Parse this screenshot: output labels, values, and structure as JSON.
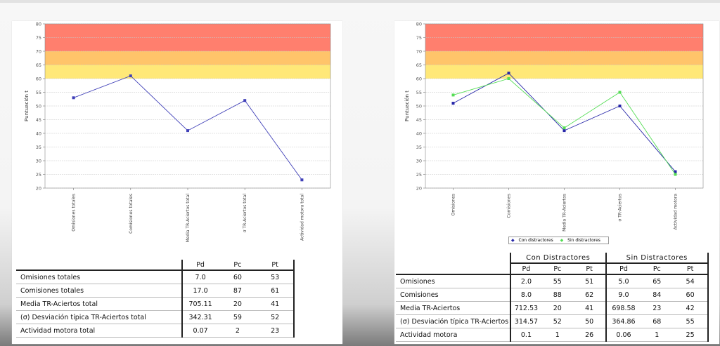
{
  "chart_data": [
    {
      "type": "line",
      "ylabel": "Puntuación t",
      "ylim": [
        20,
        80
      ],
      "yticks": [
        20,
        25,
        30,
        35,
        40,
        45,
        50,
        55,
        60,
        65,
        70,
        75,
        80
      ],
      "bands": [
        {
          "from": 60,
          "to": 65,
          "color": "#ffe878"
        },
        {
          "from": 65,
          "to": 70,
          "color": "#ffc46a"
        },
        {
          "from": 70,
          "to": 80,
          "color": "#ff7f6e"
        }
      ],
      "categories": [
        "Omisiones totales",
        "Comisiones totales",
        "Media TR-Aciertos total",
        "σ TR-Aciertos total",
        "Actividad motora total"
      ],
      "series": [
        {
          "color": "#4040b8",
          "values": [
            53,
            61,
            41,
            52,
            23
          ]
        }
      ]
    },
    {
      "type": "line",
      "ylabel": "Puntuación t",
      "ylim": [
        20,
        80
      ],
      "yticks": [
        20,
        25,
        30,
        35,
        40,
        45,
        50,
        55,
        60,
        65,
        70,
        75,
        80
      ],
      "bands": [
        {
          "from": 60,
          "to": 65,
          "color": "#ffe878"
        },
        {
          "from": 65,
          "to": 70,
          "color": "#ffc46a"
        },
        {
          "from": 70,
          "to": 80,
          "color": "#ff7f6e"
        }
      ],
      "categories": [
        "Omisiones",
        "Comisiones",
        "Media TR-Aciertos",
        "σ TR-Aciertos",
        "Actividad motora"
      ],
      "legend_position": "bottom-center",
      "series": [
        {
          "name": "Con distractores",
          "color": "#2626a8",
          "values": [
            51,
            62,
            41,
            50,
            26
          ]
        },
        {
          "name": "Sin distractores",
          "color": "#55dd55",
          "values": [
            54,
            60,
            42,
            55,
            25
          ]
        }
      ]
    }
  ],
  "table1": {
    "headers": [
      "Pd",
      "Pc",
      "Pt"
    ],
    "rows": [
      {
        "label": "Omisiones totales",
        "values": [
          "7.0",
          "60",
          "53"
        ]
      },
      {
        "label": "Comisiones totales",
        "values": [
          "17.0",
          "87",
          "61"
        ]
      },
      {
        "label": "Media TR-Aciertos total",
        "values": [
          "705.11",
          "20",
          "41"
        ]
      },
      {
        "label": "(σ) Desviación típica TR-Aciertos total",
        "values": [
          "342.31",
          "59",
          "52"
        ]
      },
      {
        "label": "Actividad motora total",
        "values": [
          "0.07",
          "2",
          "23"
        ]
      }
    ]
  },
  "table2": {
    "groups": [
      "Con Distractores",
      "Sin Distractores"
    ],
    "headers": [
      "Pd",
      "Pc",
      "Pt",
      "Pd",
      "Pc",
      "Pt"
    ],
    "rows": [
      {
        "label": "Omisiones",
        "values": [
          "2.0",
          "55",
          "51",
          "5.0",
          "65",
          "54"
        ]
      },
      {
        "label": "Comisiones",
        "values": [
          "8.0",
          "88",
          "62",
          "9.0",
          "84",
          "60"
        ]
      },
      {
        "label": "Media TR-Aciertos",
        "values": [
          "712.53",
          "20",
          "41",
          "698.58",
          "23",
          "42"
        ]
      },
      {
        "label": "(σ) Desviación típica TR-Aciertos",
        "values": [
          "314.57",
          "52",
          "50",
          "364.86",
          "68",
          "55"
        ]
      },
      {
        "label": "Actividad motora",
        "values": [
          "0.1",
          "1",
          "26",
          "0.06",
          "1",
          "25"
        ]
      }
    ]
  }
}
